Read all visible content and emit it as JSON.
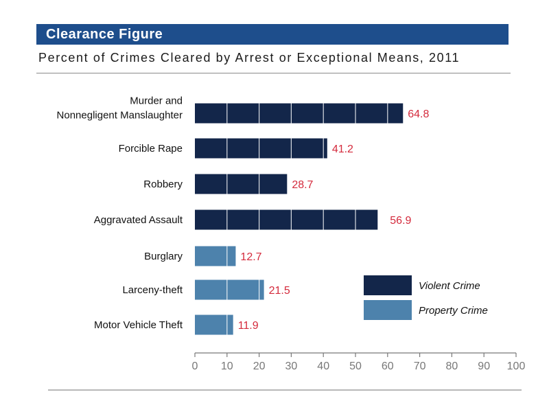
{
  "header": {
    "title": "Clearance Figure",
    "subtitle": "Percent of Crimes Cleared by Arrest or Exceptional Means, 2011"
  },
  "colors": {
    "banner": "#1e4e8c",
    "violent": "#13264a",
    "property": "#4d82ac",
    "value_label": "#d42a3c",
    "axis": "#777777"
  },
  "chart_data": {
    "type": "bar",
    "orientation": "horizontal",
    "categories": [
      [
        "Murder and",
        "Nonnegligent Manslaughter"
      ],
      [
        "Forcible Rape"
      ],
      [
        "Robbery"
      ],
      [
        "Aggravated Assault"
      ],
      [
        "Burglary"
      ],
      [
        "Larceny-theft"
      ],
      [
        "Motor Vehicle Theft"
      ]
    ],
    "values": [
      64.8,
      41.2,
      28.7,
      56.9,
      12.7,
      21.5,
      11.9
    ],
    "value_labels": [
      "64.8",
      "41.2",
      "28.7",
      "56.9",
      "12.7",
      "21.5",
      "11.9"
    ],
    "groups": [
      "violent",
      "violent",
      "violent",
      "violent",
      "property",
      "property",
      "property"
    ],
    "legend": [
      {
        "key": "violent",
        "label": "Violent Crime"
      },
      {
        "key": "property",
        "label": "Property Crime"
      }
    ],
    "legend_position": "bottom-right",
    "xlim": [
      0,
      100
    ],
    "xticks": [
      0,
      10,
      20,
      30,
      40,
      50,
      60,
      70,
      80,
      90,
      100
    ],
    "grid": "white vertical lines inside bars"
  }
}
